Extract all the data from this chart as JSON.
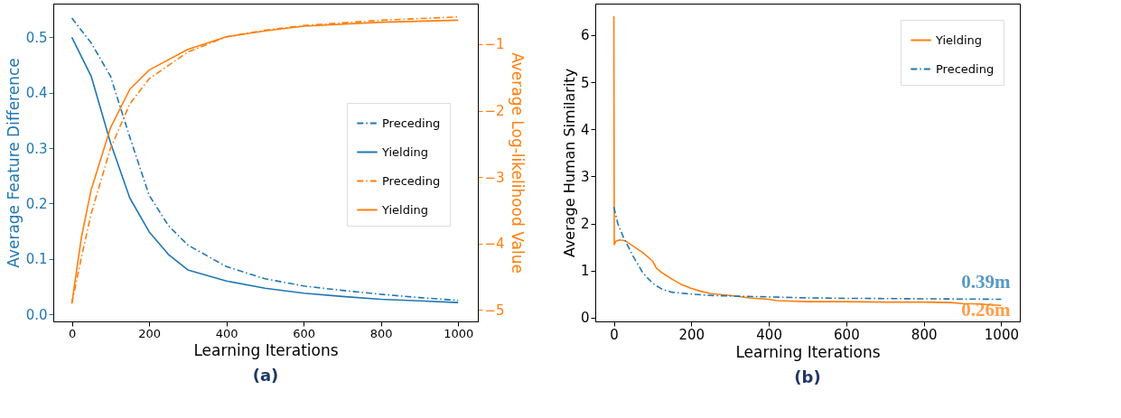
{
  "chart_data": [
    {
      "type": "line",
      "title": "(a)",
      "xlabel": "Learning Iterations",
      "ylabel": "Average Feature Difference",
      "y2label": "Average Log-likelihood Value",
      "xlim": [
        -48,
        1051
      ],
      "xticks": [
        0,
        200,
        400,
        600,
        800,
        1000
      ],
      "ylim": [
        -0.013,
        0.561
      ],
      "yticks": [
        {
          "value": 0,
          "label": "0.0"
        },
        {
          "value": 0.1,
          "label": "0.1"
        },
        {
          "value": 0.2,
          "label": "0.2"
        },
        {
          "value": 0.3,
          "label": "0.3"
        },
        {
          "value": 0.4,
          "label": "0.4"
        },
        {
          "value": 0.5,
          "label": "0.5"
        }
      ],
      "y2lim": [
        -5.17,
        -0.39
      ],
      "y2ticks": [
        {
          "value": -5,
          "label": "−5"
        },
        {
          "value": -4,
          "label": "−4"
        },
        {
          "value": -3,
          "label": "−3"
        },
        {
          "value": -2,
          "label": "−2"
        },
        {
          "value": -1,
          "label": "−1"
        }
      ],
      "grid": false,
      "legend": "right",
      "marker": "none",
      "series": [
        {
          "name": "Preceding",
          "color": "#1f77b4",
          "line_style": "dashdot",
          "x": [
            0,
            50,
            100,
            150,
            200,
            250,
            300,
            400,
            500,
            600,
            700,
            800,
            900,
            1000
          ],
          "values": [
            0.535,
            0.49,
            0.43,
            0.32,
            0.215,
            0.16,
            0.125,
            0.086,
            0.064,
            0.051,
            0.043,
            0.036,
            0.03,
            0.025
          ]
        },
        {
          "name": "Yielding",
          "color": "#1f77b4",
          "line_style": "solid",
          "x": [
            0,
            50,
            100,
            150,
            200,
            250,
            300,
            400,
            500,
            600,
            700,
            800,
            900,
            1000
          ],
          "values": [
            0.5,
            0.43,
            0.31,
            0.21,
            0.149,
            0.108,
            0.08,
            0.06,
            0.047,
            0.038,
            0.032,
            0.027,
            0.024,
            0.021
          ]
        },
        {
          "name": "Preceding",
          "color": "#ff7f0e",
          "line_style": "dashdot",
          "axis": "y2",
          "x": [
            0,
            25,
            50,
            100,
            150,
            200,
            300,
            400,
            500,
            600,
            800,
            1000
          ],
          "values": [
            -4.9,
            -4.2,
            -3.55,
            -2.57,
            -1.9,
            -1.52,
            -1.12,
            -0.89,
            -0.79,
            -0.72,
            -0.64,
            -0.59
          ]
        },
        {
          "name": "Yielding",
          "color": "#ff7f0e",
          "line_style": "solid",
          "axis": "y2",
          "x": [
            0,
            25,
            50,
            100,
            150,
            200,
            300,
            400,
            500,
            600,
            800,
            1000
          ],
          "values": [
            -4.9,
            -3.9,
            -3.19,
            -2.26,
            -1.68,
            -1.39,
            -1.08,
            -0.89,
            -0.8,
            -0.73,
            -0.67,
            -0.64
          ]
        }
      ]
    },
    {
      "type": "line",
      "title": "(b)",
      "xlabel": "Learning Iterations",
      "ylabel": "Average Human Similarity",
      "xlim": [
        -48,
        1048
      ],
      "xticks": [
        0,
        200,
        400,
        600,
        800,
        1000
      ],
      "ylim": [
        -0.08,
        6.67
      ],
      "yticks": [
        0,
        1,
        2,
        3,
        4,
        5,
        6
      ],
      "grid": false,
      "legend": "top right",
      "marker": "none",
      "annotations": [
        {
          "text": "0.39m",
          "x": 1000,
          "y": 0.39
        },
        {
          "text": "0.26m",
          "x": 1000,
          "y": 0.26
        }
      ],
      "series": [
        {
          "name": "Yielding",
          "color": "#ff7f0e",
          "line_style": "solid",
          "x": [
            0,
            1,
            5,
            15,
            30,
            50,
            75,
            100,
            110,
            125,
            150,
            175,
            200,
            225,
            250,
            300,
            350,
            400,
            420,
            500,
            600,
            700,
            800,
            870,
            900,
            950,
            970,
            1000
          ],
          "values": [
            6.4,
            1.55,
            1.62,
            1.65,
            1.63,
            1.52,
            1.38,
            1.2,
            1.05,
            0.95,
            0.82,
            0.7,
            0.62,
            0.56,
            0.51,
            0.47,
            0.42,
            0.39,
            0.36,
            0.34,
            0.34,
            0.33,
            0.33,
            0.32,
            0.3,
            0.29,
            0.27,
            0.26
          ]
        },
        {
          "name": "Preceding",
          "color": "#1f77b4",
          "line_style": "dashdot",
          "x": [
            0,
            10,
            25,
            50,
            75,
            100,
            125,
            150,
            200,
            250,
            300,
            400,
            500,
            600,
            800,
            1000
          ],
          "values": [
            2.35,
            2.0,
            1.7,
            1.3,
            0.95,
            0.73,
            0.6,
            0.54,
            0.5,
            0.47,
            0.46,
            0.44,
            0.42,
            0.41,
            0.4,
            0.39
          ]
        }
      ]
    }
  ]
}
